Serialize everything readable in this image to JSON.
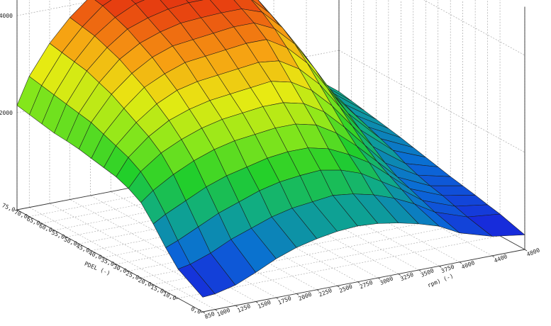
{
  "chart_data": {
    "type": "surface",
    "title": "",
    "x_axis": {
      "label": "rpm) (-)",
      "ticks": [
        "850",
        "1000",
        "1250",
        "1500",
        "1750",
        "2000",
        "2250",
        "2500",
        "2750",
        "3000",
        "3250",
        "3500",
        "3750",
        "4000",
        "4400",
        "4800"
      ],
      "values": [
        850,
        1000,
        1250,
        1500,
        1750,
        2000,
        2250,
        2500,
        2750,
        3000,
        3250,
        3500,
        3750,
        4000,
        4400,
        4800
      ]
    },
    "y_axis": {
      "label": "PDEL (-)",
      "ticks": [
        "0,0",
        "10,0",
        "15,0",
        "20,0",
        "25,0",
        "30,0",
        "35,0",
        "40,0",
        "45,0",
        "50,0",
        "55,0",
        "60,0",
        "65,0",
        "70,0",
        "75,0"
      ],
      "values": [
        0,
        10,
        15,
        20,
        25,
        30,
        35,
        40,
        45,
        50,
        55,
        60,
        65,
        70,
        75
      ]
    },
    "z_axis": {
      "label": "",
      "ticks": [
        "2000",
        "4000"
      ],
      "range": [
        0,
        5000
      ]
    },
    "grid": true,
    "colormap": [
      "#1a1adc",
      "#0a6cd6",
      "#0fa98a",
      "#22cf2a",
      "#8ee81a",
      "#e8ea12",
      "#f7a012",
      "#e84210",
      "#d81e10"
    ],
    "z_values": [
      [
        300,
        320,
        420,
        600,
        800,
        950,
        1050,
        1120,
        1150,
        1120,
        1050,
        950,
        820,
        600,
        400,
        300
      ],
      [
        600,
        650,
        800,
        1000,
        1150,
        1300,
        1400,
        1450,
        1500,
        1450,
        1350,
        1200,
        1000,
        750,
        520,
        450
      ],
      [
        900,
        1000,
        1200,
        1400,
        1550,
        1700,
        1800,
        1850,
        1880,
        1800,
        1650,
        1400,
        1150,
        850,
        600,
        500
      ],
      [
        1250,
        1400,
        1600,
        1800,
        1950,
        2050,
        2150,
        2200,
        2200,
        2100,
        1900,
        1650,
        1300,
        950,
        680,
        560
      ],
      [
        1550,
        1750,
        2000,
        2200,
        2350,
        2450,
        2500,
        2550,
        2550,
        2450,
        2200,
        1850,
        1450,
        1050,
        740,
        610
      ],
      [
        1700,
        2000,
        2300,
        2500,
        2650,
        2750,
        2800,
        2850,
        2850,
        2750,
        2500,
        2100,
        1650,
        1200,
        820,
        660
      ],
      [
        1800,
        2150,
        2500,
        2750,
        2900,
        3000,
        3050,
        3100,
        3150,
        3050,
        2800,
        2400,
        1900,
        1400,
        920,
        720
      ],
      [
        1850,
        2250,
        2650,
        2950,
        3150,
        3250,
        3300,
        3350,
        3400,
        3350,
        3100,
        2700,
        2150,
        1600,
        1050,
        780
      ],
      [
        1900,
        2350,
        2800,
        3150,
        3350,
        3500,
        3550,
        3600,
        3650,
        3650,
        3400,
        3000,
        2400,
        1800,
        1150,
        840
      ],
      [
        1950,
        2450,
        2950,
        3300,
        3550,
        3700,
        3750,
        3800,
        3850,
        3850,
        3650,
        3250,
        2650,
        2000,
        1250,
        900
      ],
      [
        1980,
        2500,
        3050,
        3450,
        3700,
        3850,
        3950,
        3980,
        4000,
        4000,
        3850,
        3450,
        2850,
        2150,
        1350,
        950
      ],
      [
        2000,
        2550,
        3150,
        3550,
        3850,
        4000,
        4100,
        4150,
        4150,
        4150,
        4000,
        3600,
        3000,
        2300,
        1450,
        1000
      ],
      [
        2050,
        2600,
        3200,
        3650,
        3950,
        4150,
        4250,
        4300,
        4300,
        4300,
        4150,
        3750,
        3150,
        2400,
        1550,
        1050
      ],
      [
        2100,
        2650,
        3250,
        3700,
        4050,
        4250,
        4400,
        4400,
        4450,
        4450,
        4300,
        3900,
        3300,
        2500,
        1600,
        1100
      ],
      [
        2150,
        2700,
        3300,
        3750,
        4100,
        4350,
        4500,
        4500,
        4550,
        4550,
        4400,
        4000,
        3400,
        2600,
        1650,
        1150
      ]
    ]
  }
}
